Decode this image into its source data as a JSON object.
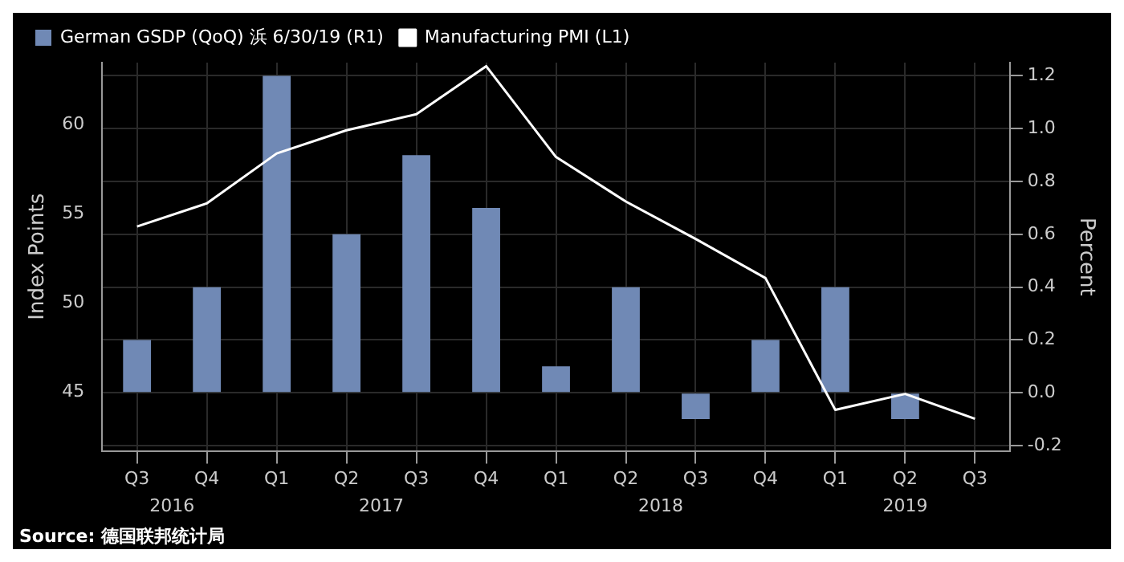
{
  "chart_data": {
    "type": "bar",
    "categories": [
      "Q3",
      "Q4",
      "Q1",
      "Q2",
      "Q3",
      "Q4",
      "Q1",
      "Q2",
      "Q3",
      "Q4",
      "Q1",
      "Q2",
      "Q3"
    ],
    "series": [
      {
        "name": "German GSDP (QoQ) 浜 6/30/19 (R1)",
        "axis": "y2",
        "color": "#7089b5",
        "values": [
          0.2,
          0.4,
          1.2,
          0.6,
          0.9,
          0.7,
          0.1,
          0.4,
          -0.1,
          0.2,
          0.4,
          -0.1,
          null
        ]
      },
      {
        "name": "Manufacturing PMI (L1)",
        "type": "line",
        "color": "#ffffff",
        "values": [
          54.3,
          55.6,
          58.4,
          59.7,
          60.6,
          63.3,
          58.2,
          55.7,
          53.6,
          51.4,
          44.0,
          44.9,
          43.5
        ]
      }
    ],
    "ylabel": "Index Points",
    "y2label": "Percent",
    "ylim": [
      41.7,
      63.5
    ],
    "yticks": [
      45,
      50,
      55,
      60
    ],
    "y2lim": [
      -0.22,
      1.25
    ],
    "y2ticks": [
      {
        "value": -0.2,
        "label": "-0.2"
      },
      {
        "value": 0,
        "label": "0.0"
      },
      {
        "value": 0.2,
        "label": "0.2"
      },
      {
        "value": 0.4,
        "label": "0.4"
      },
      {
        "value": 0.6,
        "label": "0.6"
      },
      {
        "value": 0.8,
        "label": "0.8"
      },
      {
        "value": 1,
        "label": "1.0"
      },
      {
        "value": 1.2,
        "label": "1.2"
      }
    ],
    "grid": true,
    "legend": "top left",
    "marker": "none",
    "line_style": "solid",
    "annotations": [
      "2016",
      "2017",
      "2018",
      "2019",
      "Source: 德国联邦统计局"
    ]
  }
}
